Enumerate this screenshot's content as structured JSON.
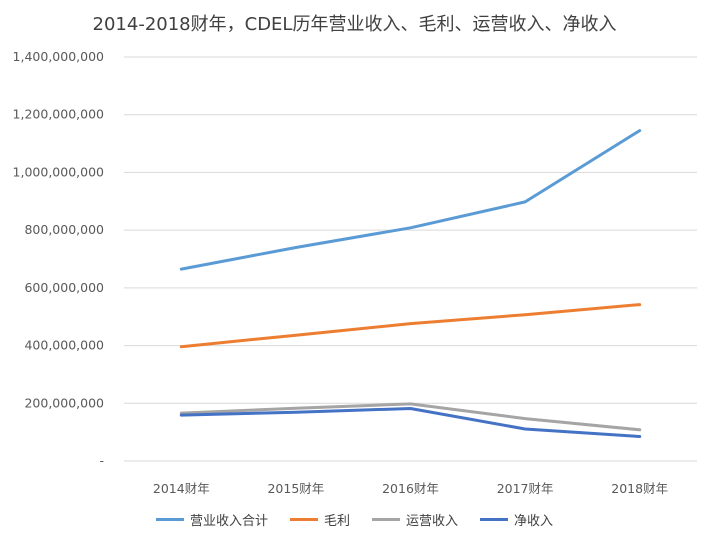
{
  "chart_data": {
    "type": "line",
    "title": "2014-2018财年，CDEL历年营业收入、毛利、运营收入、净收入",
    "categories": [
      "2014财年",
      "2015财年",
      "2016财年",
      "2017财年",
      "2018财年"
    ],
    "ylim": [
      0,
      1400000000
    ],
    "yticks": [
      {
        "value": 0,
        "label": "-"
      },
      {
        "value": 200000000,
        "label": "200,000,000"
      },
      {
        "value": 400000000,
        "label": "400,000,000"
      },
      {
        "value": 600000000,
        "label": "600,000,000"
      },
      {
        "value": 800000000,
        "label": "800,000,000"
      },
      {
        "value": 1000000000,
        "label": "1,000,000,000"
      },
      {
        "value": 1200000000,
        "label": "1,200,000,000"
      },
      {
        "value": 1400000000,
        "label": "1,400,000,000"
      }
    ],
    "grid": true,
    "legend_position": "bottom",
    "series": [
      {
        "name": "营业收入合计",
        "color": "#5B9BD5",
        "values": [
          665000000,
          740000000,
          808000000,
          898000000,
          1145000000
        ]
      },
      {
        "name": "毛利",
        "color": "#ED7D31",
        "values": [
          396000000,
          436000000,
          476000000,
          507000000,
          542000000
        ]
      },
      {
        "name": "运营收入",
        "color": "#A5A5A5",
        "values": [
          166000000,
          183000000,
          198000000,
          147000000,
          108000000
        ]
      },
      {
        "name": "净收入",
        "color": "#4472C4",
        "values": [
          159000000,
          169000000,
          182000000,
          111000000,
          85000000
        ]
      }
    ]
  }
}
